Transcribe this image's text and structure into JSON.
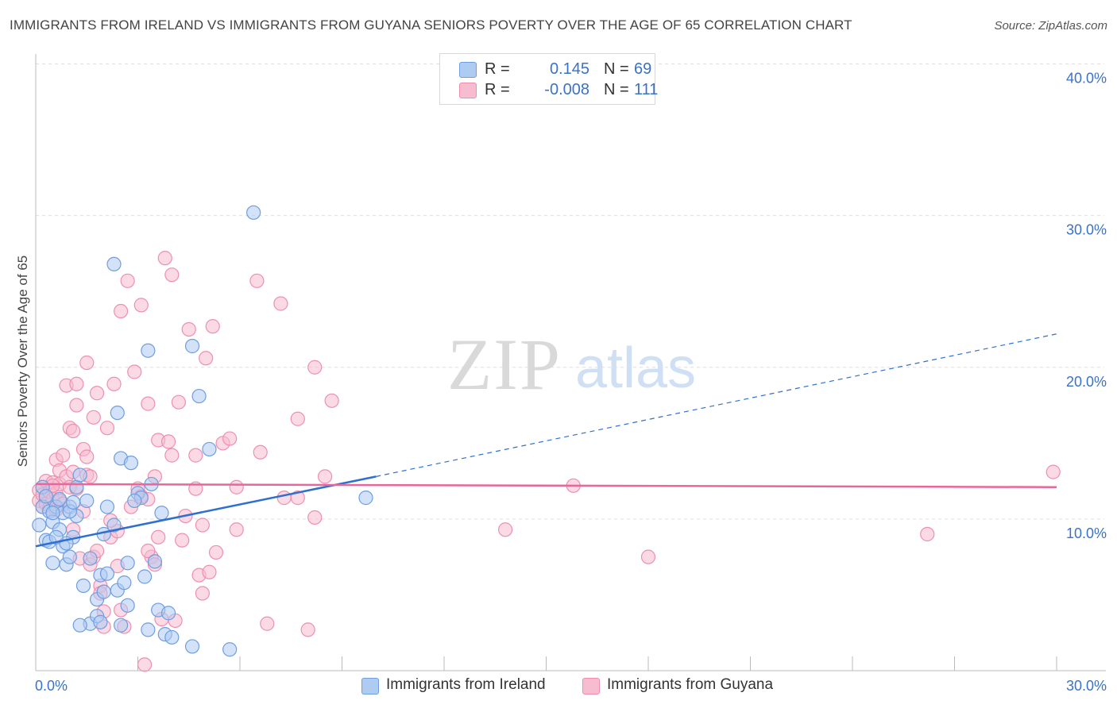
{
  "title": "IMMIGRANTS FROM IRELAND VS IMMIGRANTS FROM GUYANA SENIORS POVERTY OVER THE AGE OF 65 CORRELATION CHART",
  "source": "Source: ZipAtlas.com",
  "watermark": {
    "zip": "ZIP",
    "atlas": "atlas"
  },
  "legend": {
    "r_label": "R =",
    "n_label": "N =",
    "ireland": {
      "r": "0.145",
      "n": "69"
    },
    "guyana": {
      "r": "-0.008",
      "n": "111"
    }
  },
  "colors": {
    "ireland_fill": "#aecbf2",
    "ireland_stroke": "#6e9ee0",
    "ireland_line": "#2f6fd0",
    "guyana_fill": "#f7bcd0",
    "guyana_stroke": "#ee8fb0",
    "guyana_line": "#e8679a",
    "grid": "#dddddd",
    "tick_label": "#3a72c8"
  },
  "chart_data": {
    "type": "scatter",
    "title": "IMMIGRANTS FROM IRELAND VS IMMIGRANTS FROM GUYANA SENIORS POVERTY OVER THE AGE OF 65 CORRELATION CHART",
    "xlabel": "",
    "ylabel": "Seniors Poverty Over the Age of 65",
    "xlim": [
      0,
      30
    ],
    "ylim": [
      0,
      40
    ],
    "x_tick_labels": [
      "0.0%",
      "30.0%"
    ],
    "y_ticks": [
      10,
      20,
      30,
      40
    ],
    "y_tick_labels": [
      "10.0%",
      "20.0%",
      "30.0%",
      "40.0%"
    ],
    "grid": true,
    "series": [
      {
        "name": "Immigrants from Ireland",
        "r": 0.145,
        "n": 69,
        "trend": {
          "x0": 0,
          "y0": 8.2,
          "x1_solid": 10.0,
          "y1_solid": 12.8,
          "x1_dashed": 30.0,
          "y1_dashed": 22.2
        },
        "points": [
          [
            0.1,
            9.6
          ],
          [
            0.2,
            12.1
          ],
          [
            0.2,
            10.8
          ],
          [
            0.3,
            8.6
          ],
          [
            0.3,
            11.5
          ],
          [
            0.4,
            10.5
          ],
          [
            0.4,
            8.5
          ],
          [
            0.5,
            9.8
          ],
          [
            0.5,
            7.1
          ],
          [
            0.6,
            10.8
          ],
          [
            0.7,
            11.3
          ],
          [
            0.7,
            9.3
          ],
          [
            0.8,
            8.2
          ],
          [
            0.8,
            10.4
          ],
          [
            0.9,
            7.0
          ],
          [
            1.0,
            7.5
          ],
          [
            1.0,
            10.8
          ],
          [
            1.1,
            8.8
          ],
          [
            1.2,
            10.2
          ],
          [
            1.2,
            12.1
          ],
          [
            1.3,
            12.9
          ],
          [
            1.4,
            5.6
          ],
          [
            1.5,
            11.2
          ],
          [
            1.6,
            3.1
          ],
          [
            1.6,
            7.4
          ],
          [
            1.8,
            4.7
          ],
          [
            1.8,
            3.6
          ],
          [
            1.9,
            6.3
          ],
          [
            2.0,
            5.2
          ],
          [
            2.1,
            10.8
          ],
          [
            2.1,
            6.4
          ],
          [
            2.3,
            26.8
          ],
          [
            2.3,
            9.6
          ],
          [
            2.4,
            5.3
          ],
          [
            2.4,
            17.0
          ],
          [
            2.5,
            14.0
          ],
          [
            2.6,
            5.8
          ],
          [
            2.7,
            7.1
          ],
          [
            2.7,
            4.3
          ],
          [
            2.8,
            13.7
          ],
          [
            3.0,
            11.7
          ],
          [
            3.1,
            11.4
          ],
          [
            3.2,
            6.2
          ],
          [
            3.3,
            2.7
          ],
          [
            3.3,
            21.1
          ],
          [
            3.4,
            12.3
          ],
          [
            3.5,
            7.2
          ],
          [
            3.6,
            4.0
          ],
          [
            3.7,
            10.4
          ],
          [
            3.8,
            2.4
          ],
          [
            3.9,
            3.8
          ],
          [
            4.0,
            2.2
          ],
          [
            4.6,
            21.4
          ],
          [
            4.6,
            1.6
          ],
          [
            4.8,
            18.1
          ],
          [
            5.1,
            14.6
          ],
          [
            5.7,
            1.4
          ],
          [
            6.4,
            30.2
          ],
          [
            9.7,
            11.4
          ],
          [
            0.5,
            10.4
          ],
          [
            1.0,
            10.5
          ],
          [
            1.9,
            3.2
          ],
          [
            2.5,
            3.0
          ],
          [
            0.9,
            8.4
          ],
          [
            1.3,
            3.0
          ],
          [
            2.9,
            11.2
          ],
          [
            2.0,
            9.0
          ],
          [
            1.1,
            11.1
          ],
          [
            0.6,
            8.8
          ]
        ]
      },
      {
        "name": "Immigrants from Guyana",
        "r": -0.008,
        "n": 111,
        "trend": {
          "x0": 0,
          "y0": 12.3,
          "x1": 30.0,
          "y1": 12.1
        },
        "points": [
          [
            0.1,
            11.9
          ],
          [
            0.1,
            11.2
          ],
          [
            0.2,
            12.1
          ],
          [
            0.2,
            10.8
          ],
          [
            0.2,
            11.6
          ],
          [
            0.3,
            11.4
          ],
          [
            0.3,
            12.5
          ],
          [
            0.3,
            11.0
          ],
          [
            0.4,
            10.7
          ],
          [
            0.4,
            11.8
          ],
          [
            0.5,
            11.3
          ],
          [
            0.5,
            12.4
          ],
          [
            0.6,
            13.9
          ],
          [
            0.6,
            11.7
          ],
          [
            0.6,
            10.6
          ],
          [
            0.7,
            13.2
          ],
          [
            0.7,
            12.3
          ],
          [
            0.7,
            11.2
          ],
          [
            0.8,
            14.2
          ],
          [
            0.8,
            11.0
          ],
          [
            0.9,
            18.8
          ],
          [
            0.9,
            12.8
          ],
          [
            1.0,
            16.0
          ],
          [
            1.0,
            12.1
          ],
          [
            1.1,
            15.8
          ],
          [
            1.1,
            13.1
          ],
          [
            1.2,
            18.9
          ],
          [
            1.2,
            12.0
          ],
          [
            1.3,
            7.4
          ],
          [
            1.4,
            10.5
          ],
          [
            1.4,
            14.6
          ],
          [
            1.5,
            20.3
          ],
          [
            1.5,
            14.1
          ],
          [
            1.5,
            12.9
          ],
          [
            1.6,
            12.8
          ],
          [
            1.6,
            7.0
          ],
          [
            1.7,
            16.7
          ],
          [
            1.7,
            7.5
          ],
          [
            1.8,
            18.3
          ],
          [
            1.8,
            7.9
          ],
          [
            1.9,
            5.6
          ],
          [
            1.9,
            5.1
          ],
          [
            2.0,
            3.9
          ],
          [
            2.0,
            2.9
          ],
          [
            2.1,
            16.0
          ],
          [
            2.2,
            8.8
          ],
          [
            2.3,
            18.9
          ],
          [
            2.4,
            9.2
          ],
          [
            2.4,
            6.9
          ],
          [
            2.5,
            23.7
          ],
          [
            2.5,
            4.0
          ],
          [
            2.6,
            2.9
          ],
          [
            2.7,
            25.7
          ],
          [
            2.8,
            10.8
          ],
          [
            2.9,
            19.7
          ],
          [
            3.0,
            12.0
          ],
          [
            3.1,
            24.1
          ],
          [
            3.1,
            11.5
          ],
          [
            3.2,
            0.4
          ],
          [
            3.3,
            17.6
          ],
          [
            3.3,
            11.3
          ],
          [
            3.4,
            7.5
          ],
          [
            3.5,
            12.8
          ],
          [
            3.5,
            7.0
          ],
          [
            3.6,
            15.2
          ],
          [
            3.6,
            8.8
          ],
          [
            3.7,
            3.4
          ],
          [
            3.8,
            27.2
          ],
          [
            3.9,
            15.1
          ],
          [
            4.0,
            14.2
          ],
          [
            4.0,
            26.1
          ],
          [
            4.1,
            3.3
          ],
          [
            4.2,
            17.7
          ],
          [
            4.4,
            10.2
          ],
          [
            4.5,
            22.5
          ],
          [
            4.7,
            12.0
          ],
          [
            4.7,
            14.2
          ],
          [
            4.8,
            6.3
          ],
          [
            4.9,
            9.6
          ],
          [
            4.9,
            5.1
          ],
          [
            5.0,
            20.6
          ],
          [
            5.1,
            6.5
          ],
          [
            5.2,
            22.7
          ],
          [
            5.3,
            7.8
          ],
          [
            5.5,
            15.0
          ],
          [
            5.7,
            15.3
          ],
          [
            5.9,
            12.1
          ],
          [
            5.9,
            9.3
          ],
          [
            6.5,
            25.7
          ],
          [
            6.6,
            14.4
          ],
          [
            6.8,
            3.1
          ],
          [
            7.2,
            24.2
          ],
          [
            7.3,
            11.4
          ],
          [
            7.7,
            11.4
          ],
          [
            7.7,
            16.6
          ],
          [
            8.0,
            2.7
          ],
          [
            8.2,
            20.0
          ],
          [
            8.2,
            10.1
          ],
          [
            8.5,
            12.8
          ],
          [
            8.7,
            17.8
          ],
          [
            13.8,
            9.3
          ],
          [
            15.8,
            12.2
          ],
          [
            18.0,
            7.5
          ],
          [
            26.2,
            9.0
          ],
          [
            29.9,
            13.1
          ],
          [
            1.2,
            17.5
          ],
          [
            2.2,
            9.9
          ],
          [
            3.3,
            7.9
          ],
          [
            4.3,
            8.6
          ],
          [
            0.5,
            12.2
          ],
          [
            1.1,
            9.3
          ]
        ]
      }
    ]
  },
  "bottom_legend": {
    "ireland": "Immigrants from Ireland",
    "guyana": "Immigrants from Guyana"
  }
}
